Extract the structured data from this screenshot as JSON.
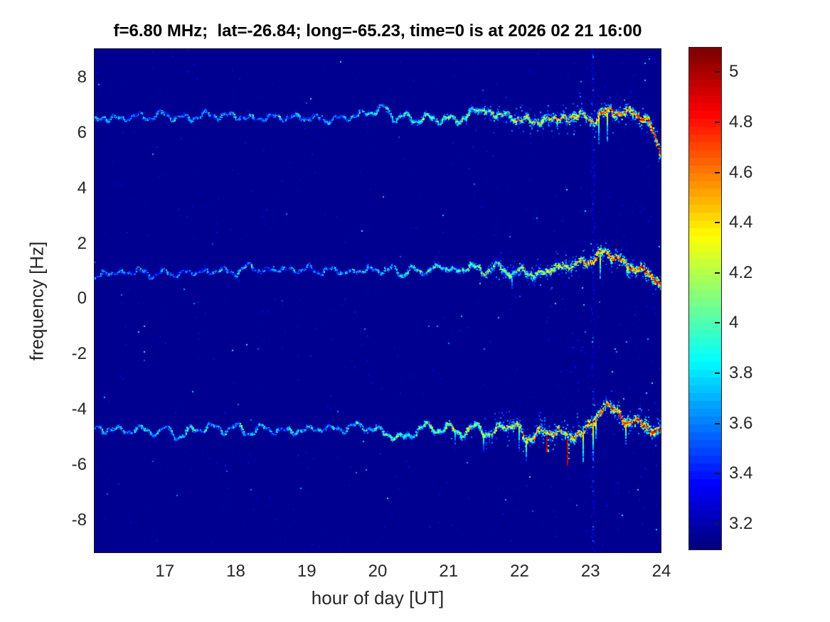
{
  "figure": {
    "title": "f=6.80 MHz;  lat=-26.84; long=-65.23, time=0 is at 2026 02 21 16:00",
    "xlabel": "hour of day [UT]",
    "ylabel": "frequency [Hz]"
  },
  "chart_data": {
    "type": "heatmap",
    "subtype": "doppler-spectrogram",
    "title": "f=6.80 MHz;  lat=-26.84; long=-65.23, time=0 is at 2026 02 21 16:00",
    "xlabel": "hour of day [UT]",
    "ylabel": "frequency [Hz]",
    "x_range": [
      16,
      24
    ],
    "x_ticks": [
      17,
      18,
      19,
      20,
      21,
      22,
      23,
      24
    ],
    "y_range": [
      -9.18,
      9.05
    ],
    "y_ticks": [
      8,
      6,
      4,
      2,
      0,
      -2,
      -4,
      -6,
      -8
    ],
    "grid": false,
    "colormap": "jet-64",
    "color_range": [
      3.1,
      5.1
    ],
    "colorbar_ticks": [
      5,
      4.8,
      4.6,
      4.4,
      4.2,
      4,
      3.8,
      3.6,
      3.4,
      3.2
    ],
    "colorbar_position": "right",
    "background_value": 3.15,
    "vertical_artifact_hour": 23.03,
    "traces": [
      {
        "name": "upper doppler trace (~+6.6 Hz)",
        "seed": 7,
        "start_value": 3.85,
        "end_value": 5.0,
        "streak_factor": 0.7,
        "cloud_factor": 1.0,
        "wiggle": [
          [
            0.1,
            3.2
          ],
          [
            0.06,
            7.7
          ]
        ],
        "keypoints": [
          [
            16.0,
            6.4
          ],
          [
            16.15,
            6.6
          ],
          [
            16.35,
            6.55
          ],
          [
            16.55,
            6.65
          ],
          [
            16.75,
            6.55
          ],
          [
            16.95,
            6.75
          ],
          [
            17.1,
            6.6
          ],
          [
            17.35,
            6.5
          ],
          [
            17.55,
            6.6
          ],
          [
            17.8,
            6.55
          ],
          [
            18.0,
            6.6
          ],
          [
            18.25,
            6.5
          ],
          [
            18.5,
            6.6
          ],
          [
            18.75,
            6.55
          ],
          [
            19.0,
            6.6
          ],
          [
            19.25,
            6.5
          ],
          [
            19.5,
            6.55
          ],
          [
            19.75,
            6.65
          ],
          [
            19.95,
            6.8
          ],
          [
            20.1,
            6.9
          ],
          [
            20.25,
            6.5
          ],
          [
            20.4,
            6.65
          ],
          [
            20.55,
            6.45
          ],
          [
            20.7,
            6.6
          ],
          [
            20.85,
            6.5
          ],
          [
            21.0,
            6.6
          ],
          [
            21.15,
            6.5
          ],
          [
            21.3,
            6.7
          ],
          [
            21.5,
            6.9
          ],
          [
            21.65,
            6.5
          ],
          [
            21.8,
            6.9
          ],
          [
            21.95,
            6.3
          ],
          [
            22.1,
            6.7
          ],
          [
            22.25,
            6.2
          ],
          [
            22.4,
            6.75
          ],
          [
            22.55,
            6.5
          ],
          [
            22.7,
            6.7
          ],
          [
            22.85,
            6.8
          ],
          [
            23.0,
            6.55
          ],
          [
            23.15,
            6.8
          ],
          [
            23.3,
            7.0
          ],
          [
            23.45,
            6.8
          ],
          [
            23.6,
            6.9
          ],
          [
            23.75,
            6.55
          ],
          [
            23.85,
            6.2
          ],
          [
            24.0,
            5.3
          ]
        ]
      },
      {
        "name": "middle doppler trace (~+1.0 Hz)",
        "seed": 13,
        "start_value": 3.8,
        "end_value": 4.95,
        "streak_factor": 0.45,
        "cloud_factor": 0.8,
        "wiggle": [
          [
            0.09,
            3.4
          ],
          [
            0.05,
            8.3
          ]
        ],
        "keypoints": [
          [
            16.0,
            0.75
          ],
          [
            16.2,
            1.1
          ],
          [
            16.4,
            1.0
          ],
          [
            16.6,
            1.15
          ],
          [
            16.8,
            1.0
          ],
          [
            17.0,
            1.1
          ],
          [
            17.2,
            0.95
          ],
          [
            17.4,
            1.1
          ],
          [
            17.6,
            1.0
          ],
          [
            17.8,
            1.1
          ],
          [
            18.0,
            0.95
          ],
          [
            18.2,
            1.15
          ],
          [
            18.4,
            0.9
          ],
          [
            18.6,
            1.1
          ],
          [
            18.8,
            1.0
          ],
          [
            19.0,
            1.1
          ],
          [
            19.2,
            0.95
          ],
          [
            19.4,
            1.05
          ],
          [
            19.6,
            0.9
          ],
          [
            19.8,
            1.1
          ],
          [
            20.0,
            1.0
          ],
          [
            20.2,
            1.1
          ],
          [
            20.35,
            0.85
          ],
          [
            20.5,
            1.05
          ],
          [
            20.7,
            0.9
          ],
          [
            20.9,
            1.15
          ],
          [
            21.1,
            0.9
          ],
          [
            21.3,
            1.1
          ],
          [
            21.5,
            0.85
          ],
          [
            21.7,
            1.05
          ],
          [
            21.9,
            0.7
          ],
          [
            22.05,
            1.0
          ],
          [
            22.2,
            0.65
          ],
          [
            22.4,
            0.95
          ],
          [
            22.6,
            1.05
          ],
          [
            22.8,
            1.1
          ],
          [
            23.0,
            1.25
          ],
          [
            23.2,
            1.65
          ],
          [
            23.35,
            1.45
          ],
          [
            23.5,
            1.25
          ],
          [
            23.65,
            1.1
          ],
          [
            23.8,
            1.0
          ],
          [
            23.9,
            0.8
          ],
          [
            24.0,
            0.35
          ]
        ]
      },
      {
        "name": "lower doppler trace (~-4.7 Hz)",
        "seed": 29,
        "start_value": 3.95,
        "end_value": 5.05,
        "streak_factor": 1.2,
        "cloud_factor": 1.2,
        "wiggle": [
          [
            0.11,
            3.0
          ],
          [
            0.06,
            7.1
          ]
        ],
        "keypoints": [
          [
            16.0,
            -4.7
          ],
          [
            16.2,
            -4.6
          ],
          [
            16.4,
            -4.7
          ],
          [
            16.6,
            -4.6
          ],
          [
            16.8,
            -4.8
          ],
          [
            17.0,
            -4.65
          ],
          [
            17.2,
            -4.95
          ],
          [
            17.4,
            -4.7
          ],
          [
            17.6,
            -4.6
          ],
          [
            17.8,
            -4.75
          ],
          [
            18.0,
            -4.65
          ],
          [
            18.2,
            -4.8
          ],
          [
            18.4,
            -4.6
          ],
          [
            18.6,
            -4.75
          ],
          [
            18.8,
            -4.65
          ],
          [
            19.0,
            -4.7
          ],
          [
            19.2,
            -4.6
          ],
          [
            19.4,
            -4.7
          ],
          [
            19.6,
            -4.65
          ],
          [
            19.8,
            -4.6
          ],
          [
            20.0,
            -4.75
          ],
          [
            20.2,
            -4.9
          ],
          [
            20.35,
            -5.05
          ],
          [
            20.5,
            -4.8
          ],
          [
            20.65,
            -4.65
          ],
          [
            20.8,
            -4.75
          ],
          [
            21.0,
            -4.65
          ],
          [
            21.2,
            -4.8
          ],
          [
            21.4,
            -4.6
          ],
          [
            21.6,
            -5.0
          ],
          [
            21.75,
            -4.6
          ],
          [
            21.95,
            -4.55
          ],
          [
            22.1,
            -5.2
          ],
          [
            22.25,
            -4.8
          ],
          [
            22.4,
            -5.0
          ],
          [
            22.55,
            -4.7
          ],
          [
            22.7,
            -5.15
          ],
          [
            22.85,
            -4.8
          ],
          [
            23.0,
            -4.7
          ],
          [
            23.1,
            -4.3
          ],
          [
            23.2,
            -3.75
          ],
          [
            23.3,
            -4.0
          ],
          [
            23.45,
            -4.35
          ],
          [
            23.6,
            -4.45
          ],
          [
            23.75,
            -4.55
          ],
          [
            23.9,
            -4.7
          ],
          [
            24.0,
            -4.9
          ]
        ]
      }
    ],
    "red_streaks": [
      {
        "trace_index": 2,
        "hour": 22.67,
        "down_hz": 0.95
      },
      {
        "trace_index": 2,
        "hour": 22.38,
        "down_hz": 0.55
      }
    ]
  },
  "colors": {
    "plot_background": "#08108e",
    "figure_background": "#ffffff",
    "axis_text": "#262626",
    "title_text": "#000000"
  }
}
